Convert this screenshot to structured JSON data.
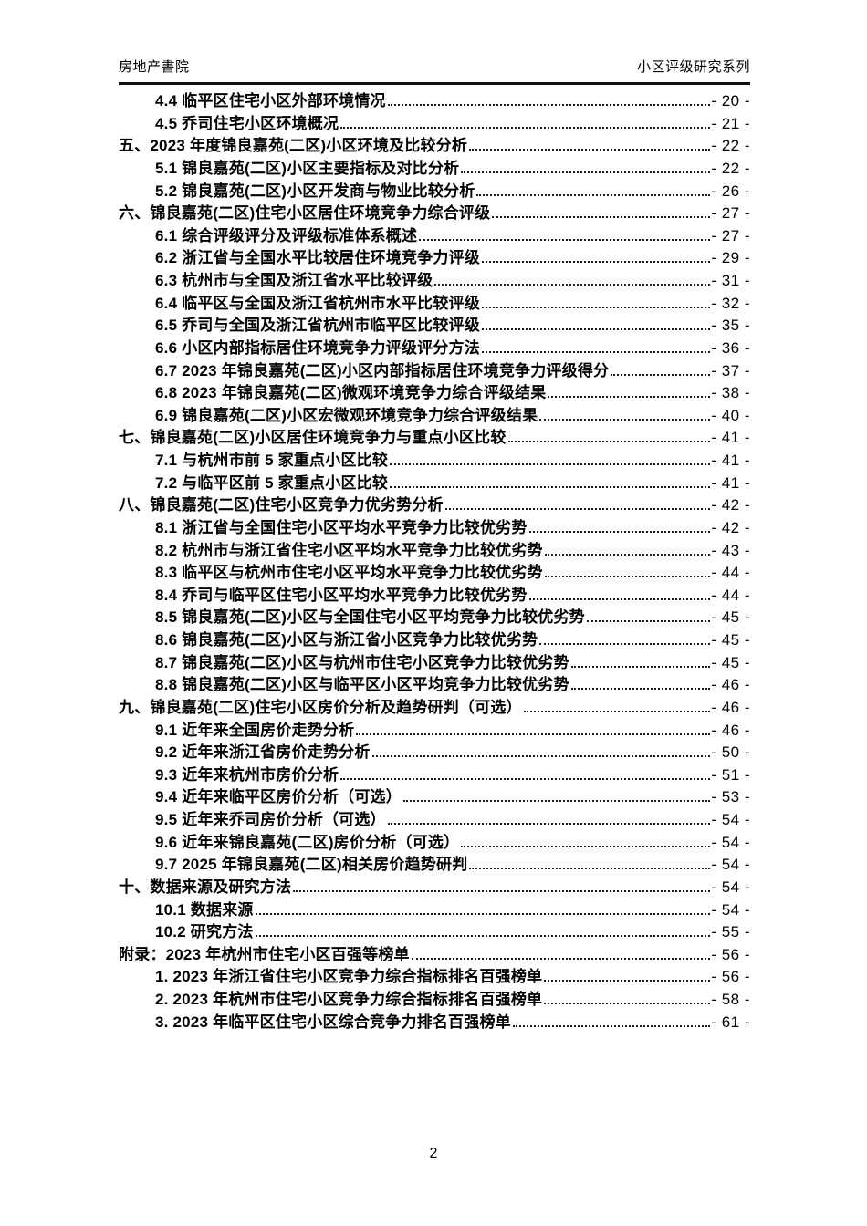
{
  "header": {
    "left": "房地产書院",
    "right": "小区评级研究系列"
  },
  "toc": {
    "items": [
      {
        "level": 2,
        "label": "4.4 临平区住宅小区外部环境情况",
        "page": "- 20 -"
      },
      {
        "level": 2,
        "label": "4.5 乔司住宅小区环境概况",
        "page": "- 21 -"
      },
      {
        "level": 1,
        "label": "五、2023 年度锦良嘉苑(二区)小区环境及比较分析",
        "page": "- 22 -"
      },
      {
        "level": 2,
        "label": "5.1 锦良嘉苑(二区)小区主要指标及对比分析",
        "page": "- 22 -"
      },
      {
        "level": 2,
        "label": "5.2 锦良嘉苑(二区)小区开发商与物业比较分析",
        "page": "- 26 -"
      },
      {
        "level": 1,
        "label": "六、锦良嘉苑(二区)住宅小区居住环境竞争力综合评级",
        "page": "- 27 -"
      },
      {
        "level": 2,
        "label": "6.1 综合评级评分及评级标准体系概述",
        "page": "- 27 -"
      },
      {
        "level": 2,
        "label": "6.2 浙江省与全国水平比较居住环境竞争力评级",
        "page": "- 29 -"
      },
      {
        "level": 2,
        "label": "6.3 杭州市与全国及浙江省水平比较评级",
        "page": "- 31 -"
      },
      {
        "level": 2,
        "label": "6.4 临平区与全国及浙江省杭州市水平比较评级",
        "page": "- 32 -"
      },
      {
        "level": 2,
        "label": "6.5 乔司与全国及浙江省杭州市临平区比较评级",
        "page": "- 35 -"
      },
      {
        "level": 2,
        "label": "6.6 小区内部指标居住环境竞争力评级评分方法",
        "page": "- 36 -"
      },
      {
        "level": 2,
        "label": "6.7 2023 年锦良嘉苑(二区)小区内部指标居住环境竞争力评级得分",
        "page": "- 37 -"
      },
      {
        "level": 2,
        "label": "6.8 2023 年锦良嘉苑(二区)微观环境竞争力综合评级结果",
        "page": "- 38 -"
      },
      {
        "level": 2,
        "label": "6.9 锦良嘉苑(二区)小区宏微观环境竞争力综合评级结果",
        "page": "- 40 -"
      },
      {
        "level": 1,
        "label": "七、锦良嘉苑(二区)小区居住环境竞争力与重点小区比较",
        "page": "- 41 -"
      },
      {
        "level": 2,
        "label": "7.1 与杭州市前 5 家重点小区比较",
        "page": "- 41 -"
      },
      {
        "level": 2,
        "label": "7.2 与临平区前 5 家重点小区比较",
        "page": "- 41 -"
      },
      {
        "level": 1,
        "label": "八、锦良嘉苑(二区)住宅小区竞争力优劣势分析",
        "page": "- 42 -"
      },
      {
        "level": 2,
        "label": "8.1 浙江省与全国住宅小区平均水平竞争力比较优劣势",
        "page": "- 42 -"
      },
      {
        "level": 2,
        "label": "8.2 杭州市与浙江省住宅小区平均水平竞争力比较优劣势",
        "page": "- 43 -"
      },
      {
        "level": 2,
        "label": "8.3 临平区与杭州市住宅小区平均水平竞争力比较优劣势",
        "page": "- 44 -"
      },
      {
        "level": 2,
        "label": "8.4 乔司与临平区住宅小区平均水平竞争力比较优劣势",
        "page": "- 44 -"
      },
      {
        "level": 2,
        "label": "8.5 锦良嘉苑(二区)小区与全国住宅小区平均竞争力比较优劣势",
        "page": "- 45 -"
      },
      {
        "level": 2,
        "label": "8.6 锦良嘉苑(二区)小区与浙江省小区竞争力比较优劣势",
        "page": "- 45 -"
      },
      {
        "level": 2,
        "label": "8.7 锦良嘉苑(二区)小区与杭州市住宅小区竞争力比较优劣势",
        "page": "- 45 -"
      },
      {
        "level": 2,
        "label": "8.8 锦良嘉苑(二区)小区与临平区小区平均竞争力比较优劣势",
        "page": "- 46 -"
      },
      {
        "level": 1,
        "label": "九、锦良嘉苑(二区)住宅小区房价分析及趋势研判（可选）",
        "page": "- 46 -"
      },
      {
        "level": 2,
        "label": "9.1 近年来全国房价走势分析",
        "page": "- 46 -"
      },
      {
        "level": 2,
        "label": "9.2 近年来浙江省房价走势分析",
        "page": "- 50 -"
      },
      {
        "level": 2,
        "label": "9.3 近年来杭州市房价分析",
        "page": "- 51 -"
      },
      {
        "level": 2,
        "label": "9.4 近年来临平区房价分析（可选）",
        "page": "- 53 -"
      },
      {
        "level": 2,
        "label": "9.5 近年来乔司房价分析（可选）",
        "page": "- 54 -"
      },
      {
        "level": 2,
        "label": "9.6 近年来锦良嘉苑(二区)房价分析（可选）",
        "page": "- 54 -"
      },
      {
        "level": 2,
        "label": "9.7 2025 年锦良嘉苑(二区)相关房价趋势研判",
        "page": "- 54 -"
      },
      {
        "level": 1,
        "label": "十、数据来源及研究方法",
        "page": "- 54 -"
      },
      {
        "level": 2,
        "label": "10.1 数据来源",
        "page": "- 54 -"
      },
      {
        "level": 2,
        "label": "10.2 研究方法",
        "page": "- 55 -"
      },
      {
        "level": 1,
        "label": "附录：2023 年杭州市住宅小区百强等榜单",
        "page": "- 56 -"
      },
      {
        "level": 2,
        "label": "1. 2023 年浙江省住宅小区竞争力综合指标排名百强榜单",
        "page": "- 56 -"
      },
      {
        "level": 2,
        "label": "2. 2023 年杭州市住宅小区竞争力综合指标排名百强榜单",
        "page": "- 58 -"
      },
      {
        "level": 2,
        "label": "3. 2023 年临平区住宅小区综合竞争力排名百强榜单",
        "page": "- 61 -"
      }
    ]
  },
  "footer": {
    "page_number": "2"
  }
}
